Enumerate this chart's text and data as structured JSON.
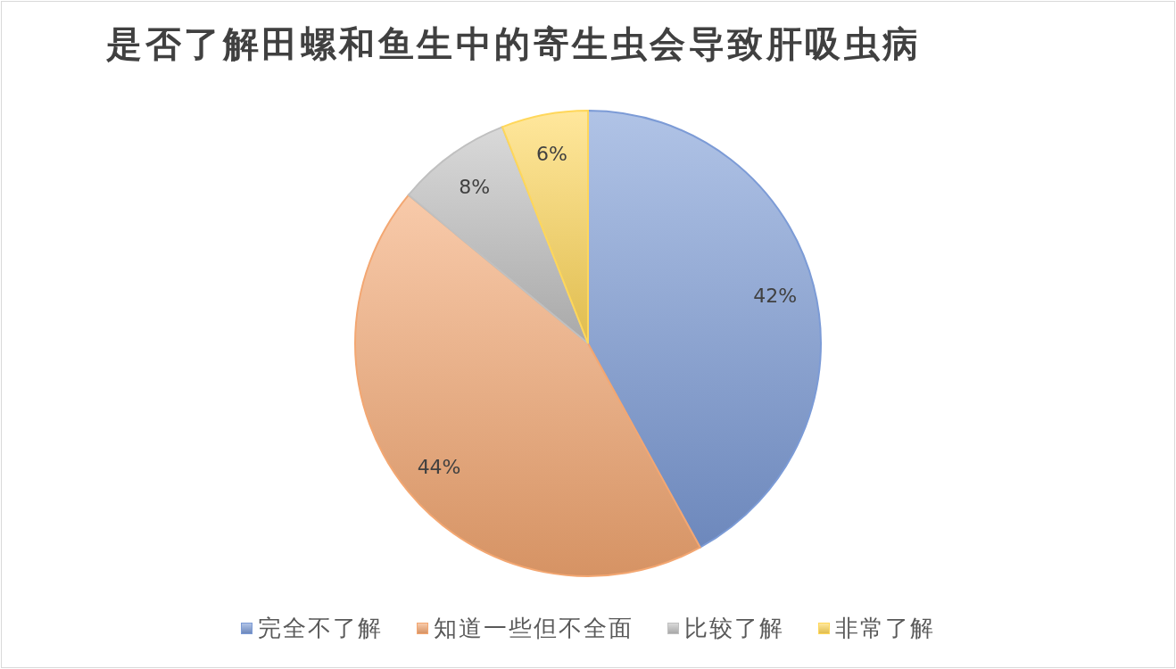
{
  "chart_data": {
    "type": "pie",
    "title": "是否了解田螺和鱼生中的寄生虫会导致肝吸虫病",
    "categories": [
      "完全不了解",
      "知道一些但不全面",
      "比较了解",
      "非常了解"
    ],
    "values": [
      42,
      44,
      8,
      6
    ],
    "colors": [
      "#7c9bd6",
      "#f3a772",
      "#c0c0c0",
      "#ffd75a"
    ],
    "value_labels": [
      "42%",
      "44%",
      "8%",
      "6%"
    ],
    "legend": "bottom"
  }
}
